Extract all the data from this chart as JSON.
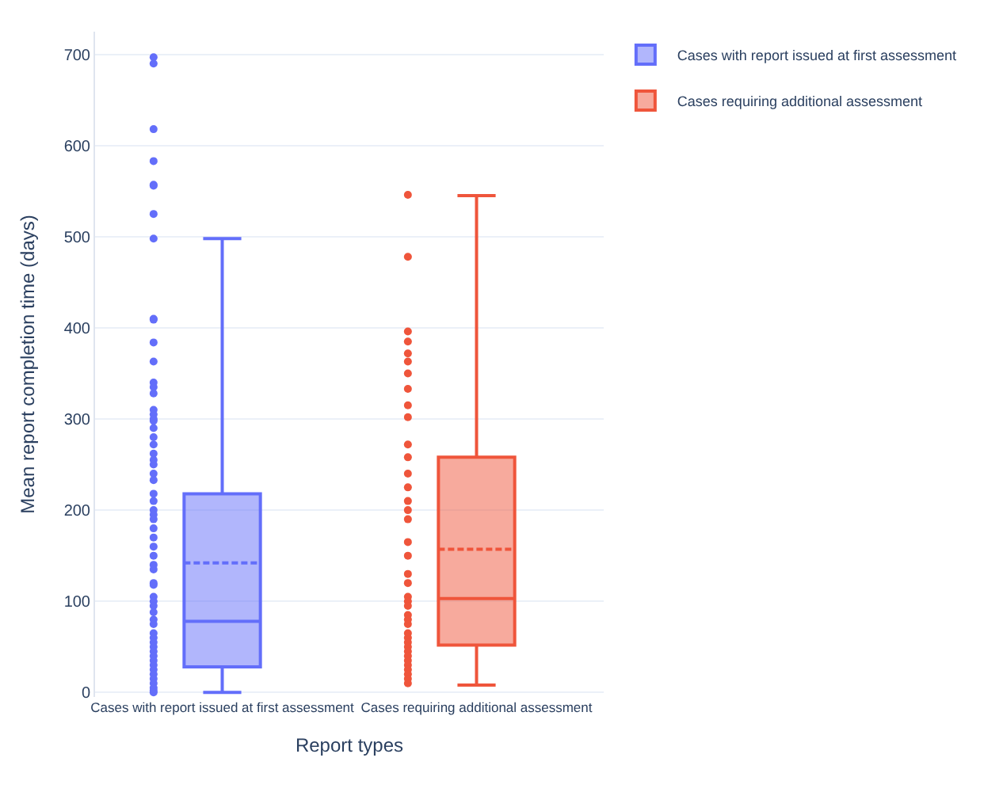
{
  "chart_data": {
    "type": "box",
    "xlabel": "Report types",
    "ylabel": "Mean report completion time (days)",
    "categories": [
      "Cases with report issued at first assessment",
      "Cases requiring additional assessment"
    ],
    "ylim": [
      -5,
      725
    ],
    "yticks": [
      0,
      100,
      200,
      300,
      400,
      500,
      600,
      700
    ],
    "grid": "y",
    "legend": "top right",
    "series": [
      {
        "name": "Cases with report issued at first assessment",
        "color": "#636efa",
        "boxes": [
          {
            "low": 0,
            "q1": 28,
            "median": 78,
            "q3": 218,
            "high": 498,
            "mean": 142
          },
          null
        ]
      },
      {
        "name": "Cases requiring additional assessment",
        "color": "#ef553b",
        "boxes": [
          null,
          {
            "low": 8,
            "q1": 52,
            "median": 103,
            "q3": 258,
            "high": 545,
            "mean": 157
          }
        ]
      },
      {
        "type": "scatter",
        "color": "#636efa",
        "x": [
          "Cases with report issued at first assessment",
          "Cases with report issued at first assessment",
          "Cases with report issued at first assessment",
          "Cases with report issued at first assessment",
          "Cases with report issued at first assessment",
          "Cases with report issued at first assessment",
          "Cases with report issued at first assessment",
          "Cases with report issued at first assessment",
          "Cases with report issued at first assessment",
          "Cases with report issued at first assessment",
          "Cases with report issued at first assessment",
          "Cases with report issued at first assessment",
          "Cases with report issued at first assessment",
          "Cases with report issued at first assessment",
          "Cases with report issued at first assessment",
          "Cases with report issued at first assessment",
          "Cases with report issued at first assessment",
          "Cases with report issued at first assessment",
          "Cases with report issued at first assessment",
          "Cases with report issued at first assessment",
          "Cases with report issued at first assessment",
          "Cases with report issued at first assessment",
          "Cases with report issued at first assessment",
          "Cases with report issued at first assessment",
          "Cases with report issued at first assessment",
          "Cases with report issued at first assessment",
          "Cases with report issued at first assessment",
          "Cases with report issued at first assessment",
          "Cases with report issued at first assessment",
          "Cases with report issued at first assessment",
          "Cases with report issued at first assessment",
          "Cases with report issued at first assessment",
          "Cases with report issued at first assessment",
          "Cases with report issued at first assessment",
          "Cases with report issued at first assessment",
          "Cases with report issued at first assessment",
          "Cases with report issued at first assessment",
          "Cases with report issued at first assessment",
          "Cases with report issued at first assessment",
          "Cases with report issued at first assessment",
          "Cases with report issued at first assessment",
          "Cases with report issued at first assessment",
          "Cases with report issued at first assessment",
          "Cases with report issued at first assessment",
          "Cases with report issued at first assessment",
          "Cases with report issued at first assessment",
          "Cases with report issued at first assessment",
          "Cases with report issued at first assessment",
          "Cases with report issued at first assessment",
          "Cases with report issued at first assessment",
          "Cases with report issued at first assessment",
          "Cases with report issued at first assessment",
          "Cases with report issued at first assessment",
          "Cases with report issued at first assessment",
          "Cases with report issued at first assessment",
          "Cases with report issued at first assessment",
          "Cases with report issued at first assessment",
          "Cases with report issued at first assessment",
          "Cases with report issued at first assessment",
          "Cases with report issued at first assessment",
          "Cases with report issued at first assessment"
        ],
        "values": [
          697,
          690,
          618,
          583,
          557,
          556,
          525,
          498,
          410,
          409,
          384,
          363,
          340,
          335,
          328,
          310,
          305,
          300,
          298,
          290,
          280,
          272,
          262,
          255,
          250,
          240,
          233,
          218,
          210,
          200,
          195,
          190,
          180,
          170,
          160,
          150,
          140,
          135,
          120,
          118,
          105,
          100,
          95,
          88,
          80,
          75,
          65,
          60,
          55,
          50,
          45,
          40,
          35,
          30,
          25,
          20,
          15,
          10,
          5,
          2,
          0
        ]
      },
      {
        "type": "scatter",
        "color": "#ef553b",
        "x": [
          "Cases requiring additional assessment",
          "Cases requiring additional assessment",
          "Cases requiring additional assessment",
          "Cases requiring additional assessment",
          "Cases requiring additional assessment",
          "Cases requiring additional assessment",
          "Cases requiring additional assessment",
          "Cases requiring additional assessment",
          "Cases requiring additional assessment",
          "Cases requiring additional assessment",
          "Cases requiring additional assessment",
          "Cases requiring additional assessment",
          "Cases requiring additional assessment",
          "Cases requiring additional assessment",
          "Cases requiring additional assessment",
          "Cases requiring additional assessment",
          "Cases requiring additional assessment",
          "Cases requiring additional assessment",
          "Cases requiring additional assessment",
          "Cases requiring additional assessment",
          "Cases requiring additional assessment",
          "Cases requiring additional assessment",
          "Cases requiring additional assessment",
          "Cases requiring additional assessment",
          "Cases requiring additional assessment",
          "Cases requiring additional assessment",
          "Cases requiring additional assessment",
          "Cases requiring additional assessment",
          "Cases requiring additional assessment",
          "Cases requiring additional assessment",
          "Cases requiring additional assessment",
          "Cases requiring additional assessment",
          "Cases requiring additional assessment",
          "Cases requiring additional assessment",
          "Cases requiring additional assessment",
          "Cases requiring additional assessment",
          "Cases requiring additional assessment",
          "Cases requiring additional assessment",
          "Cases requiring additional assessment",
          "Cases requiring additional assessment",
          "Cases requiring additional assessment"
        ],
        "values": [
          546,
          478,
          396,
          385,
          372,
          363,
          350,
          333,
          315,
          null,
          null,
          302,
          272,
          258,
          240,
          225,
          210,
          200,
          190,
          165,
          150,
          130,
          120,
          105,
          100,
          95,
          85,
          80,
          75,
          65,
          60,
          55,
          50,
          45,
          40,
          35,
          30,
          25,
          20,
          15,
          10
        ]
      }
    ]
  }
}
